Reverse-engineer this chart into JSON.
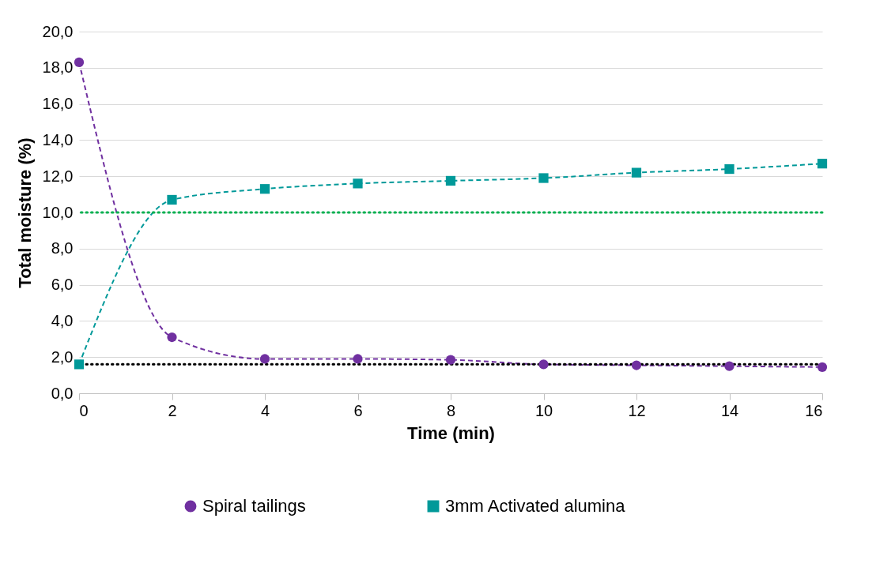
{
  "chart_data": {
    "type": "line",
    "xlabel": "Time (min)",
    "ylabel": "Total moisture (%)",
    "x": [
      0,
      2,
      4,
      6,
      8,
      10,
      12,
      14,
      16
    ],
    "series": [
      {
        "name": "Spiral tailings",
        "color": "#7030a0",
        "marker": "circle",
        "values": [
          18.3,
          3.1,
          1.9,
          1.9,
          1.85,
          1.6,
          1.55,
          1.5,
          1.45
        ]
      },
      {
        "name": "3mm Activated alumina",
        "color": "#009999",
        "marker": "square",
        "values": [
          1.6,
          10.7,
          11.3,
          11.6,
          11.75,
          11.9,
          12.2,
          12.4,
          12.7
        ]
      }
    ],
    "line_style": "dashed",
    "xlim": [
      0,
      16
    ],
    "xticks": [
      0,
      2,
      4,
      6,
      8,
      10,
      12,
      14,
      16
    ],
    "ylim": [
      0,
      20
    ],
    "yticks": [
      {
        "value": 0,
        "label": "0,0"
      },
      {
        "value": 2,
        "label": "2,0"
      },
      {
        "value": 4,
        "label": "4,0"
      },
      {
        "value": 6,
        "label": "6,0"
      },
      {
        "value": 8,
        "label": "8,0"
      },
      {
        "value": 10,
        "label": "10,0"
      },
      {
        "value": 12,
        "label": "12,0"
      },
      {
        "value": 14,
        "label": "14,0"
      },
      {
        "value": 16,
        "label": "16,0"
      },
      {
        "value": 18,
        "label": "18,0"
      },
      {
        "value": 20,
        "label": "20,0"
      }
    ],
    "ref_lines": [
      {
        "axis": "y",
        "value": 10,
        "color": "#00b050",
        "line_style": "dotted"
      },
      {
        "axis": "y",
        "value": 1.6,
        "color": "#000000",
        "line_style": "dotted"
      }
    ],
    "grid": "y",
    "legend": "bottom"
  }
}
